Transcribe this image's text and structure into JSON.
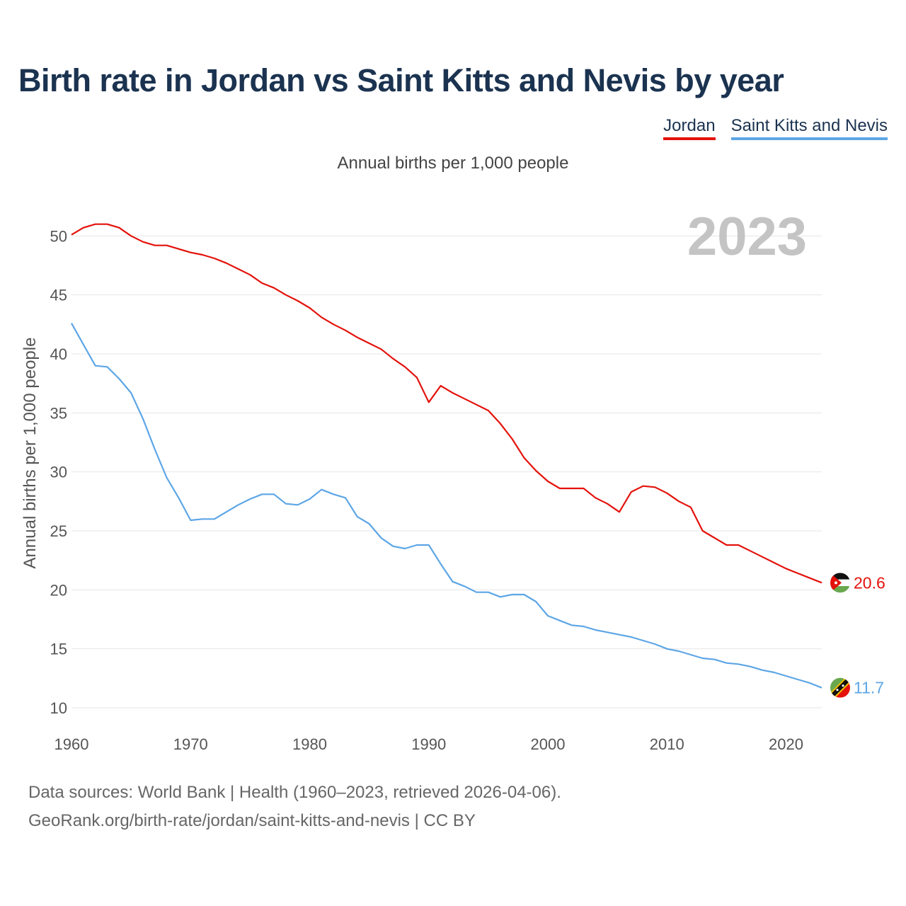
{
  "title": "Birth rate in Jordan vs Saint Kitts and Nevis by year",
  "subtitle": "Annual births per 1,000 people",
  "legend": [
    {
      "label": "Jordan",
      "color": "#e3120b"
    },
    {
      "label": "Saint Kitts and Nevis",
      "color": "#5da6e6"
    }
  ],
  "footer": {
    "line1": "Data sources: World Bank | Health (1960–2023, retrieved 2026-04-06).",
    "line2": "GeoRank.org/birth-rate/jordan/saint-kitts-and-nevis | CC BY"
  },
  "chart_data": {
    "type": "line",
    "year_label": "2023",
    "ylabel": "Annual births per 1,000 people",
    "xlim": [
      1960,
      2023
    ],
    "ylim": [
      10,
      52
    ],
    "xticks": [
      "1960",
      "1970",
      "1980",
      "1990",
      "2000",
      "2010",
      "2020"
    ],
    "yticks": [
      "10",
      "15",
      "20",
      "25",
      "30",
      "35",
      "40",
      "45",
      "50"
    ],
    "x": [
      1960,
      1961,
      1962,
      1963,
      1964,
      1965,
      1966,
      1967,
      1968,
      1969,
      1970,
      1971,
      1972,
      1973,
      1974,
      1975,
      1976,
      1977,
      1978,
      1979,
      1980,
      1981,
      1982,
      1983,
      1984,
      1985,
      1986,
      1987,
      1988,
      1989,
      1990,
      1991,
      1992,
      1993,
      1994,
      1995,
      1996,
      1997,
      1998,
      1999,
      2000,
      2001,
      2002,
      2003,
      2004,
      2005,
      2006,
      2007,
      2008,
      2009,
      2010,
      2011,
      2012,
      2013,
      2014,
      2015,
      2016,
      2017,
      2018,
      2019,
      2020,
      2021,
      2022,
      2023
    ],
    "series": [
      {
        "name": "Jordan",
        "color": "#e3120b",
        "end_label": "20.6",
        "values": [
          50.1,
          50.7,
          51.0,
          51.0,
          50.7,
          50.0,
          49.5,
          49.2,
          49.2,
          48.9,
          48.6,
          48.4,
          48.1,
          47.7,
          47.2,
          46.7,
          46.0,
          45.6,
          45.0,
          44.5,
          43.9,
          43.1,
          42.5,
          42.0,
          41.4,
          40.9,
          40.4,
          39.6,
          38.9,
          38.0,
          35.9,
          37.3,
          36.7,
          36.2,
          35.7,
          35.2,
          34.1,
          32.8,
          31.2,
          30.1,
          29.2,
          28.6,
          28.6,
          28.6,
          27.8,
          27.3,
          26.6,
          28.3,
          28.8,
          28.7,
          28.2,
          27.5,
          27.0,
          25.0,
          24.4,
          23.8,
          23.8,
          23.3,
          22.8,
          22.3,
          21.8,
          21.4,
          21.0,
          20.6
        ]
      },
      {
        "name": "Saint Kitts and Nevis",
        "color": "#5da6e6",
        "end_label": "11.7",
        "values": [
          42.6,
          40.8,
          39.0,
          38.9,
          37.9,
          36.7,
          34.5,
          31.9,
          29.5,
          27.8,
          25.9,
          26.0,
          26.0,
          26.6,
          27.2,
          27.7,
          28.1,
          28.1,
          27.3,
          27.2,
          27.7,
          28.5,
          28.1,
          27.8,
          26.2,
          25.6,
          24.4,
          23.7,
          23.5,
          23.8,
          23.8,
          22.2,
          20.7,
          20.3,
          19.8,
          19.8,
          19.4,
          19.6,
          19.6,
          19.0,
          17.8,
          17.4,
          17.0,
          16.9,
          16.6,
          16.4,
          16.2,
          16.0,
          15.7,
          15.4,
          15.0,
          14.8,
          14.5,
          14.2,
          14.1,
          13.8,
          13.7,
          13.5,
          13.2,
          13.0,
          12.7,
          12.4,
          12.1,
          11.7
        ]
      }
    ]
  }
}
